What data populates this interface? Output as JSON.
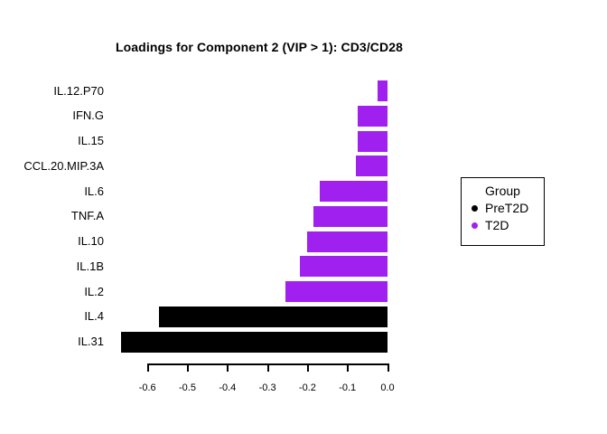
{
  "title": "Loadings for Component 2 (VIP > 1): CD3/CD28",
  "legend": {
    "title": "Group",
    "entries": [
      {
        "label": "PreT2D",
        "color": "#000000"
      },
      {
        "label": "T2D",
        "color": "#A020F0"
      }
    ]
  },
  "chart_data": {
    "type": "bar",
    "orientation": "horizontal",
    "title": "Loadings for Component 2 (VIP > 1): CD3/CD28",
    "categories": [
      "IL.12.P70",
      "IFN.G",
      "IL.15",
      "CCL.20.MIP.3A",
      "IL.6",
      "TNF.A",
      "IL.10",
      "IL.1B",
      "IL.2",
      "IL.4",
      "IL.31"
    ],
    "values": [
      -0.025,
      -0.075,
      -0.075,
      -0.08,
      -0.17,
      -0.185,
      -0.2,
      -0.22,
      -0.255,
      -0.57,
      -0.665
    ],
    "groups": [
      "T2D",
      "T2D",
      "T2D",
      "T2D",
      "T2D",
      "T2D",
      "T2D",
      "T2D",
      "T2D",
      "PreT2D",
      "PreT2D"
    ],
    "group_colors": {
      "PreT2D": "#000000",
      "T2D": "#A020F0"
    },
    "xlabel": "",
    "ylabel": "",
    "xlim": [
      -0.7,
      0.0
    ],
    "xticks": [
      -0.6,
      -0.5,
      -0.4,
      -0.3,
      -0.2,
      -0.1,
      0.0
    ],
    "xtick_labels": [
      "-0.6",
      "-0.5",
      "-0.4",
      "-0.3",
      "-0.2",
      "-0.1",
      "0.0"
    ],
    "grid": false,
    "legend_position": "right",
    "legend_title": "Group",
    "bar_edge_value": 0.0
  }
}
